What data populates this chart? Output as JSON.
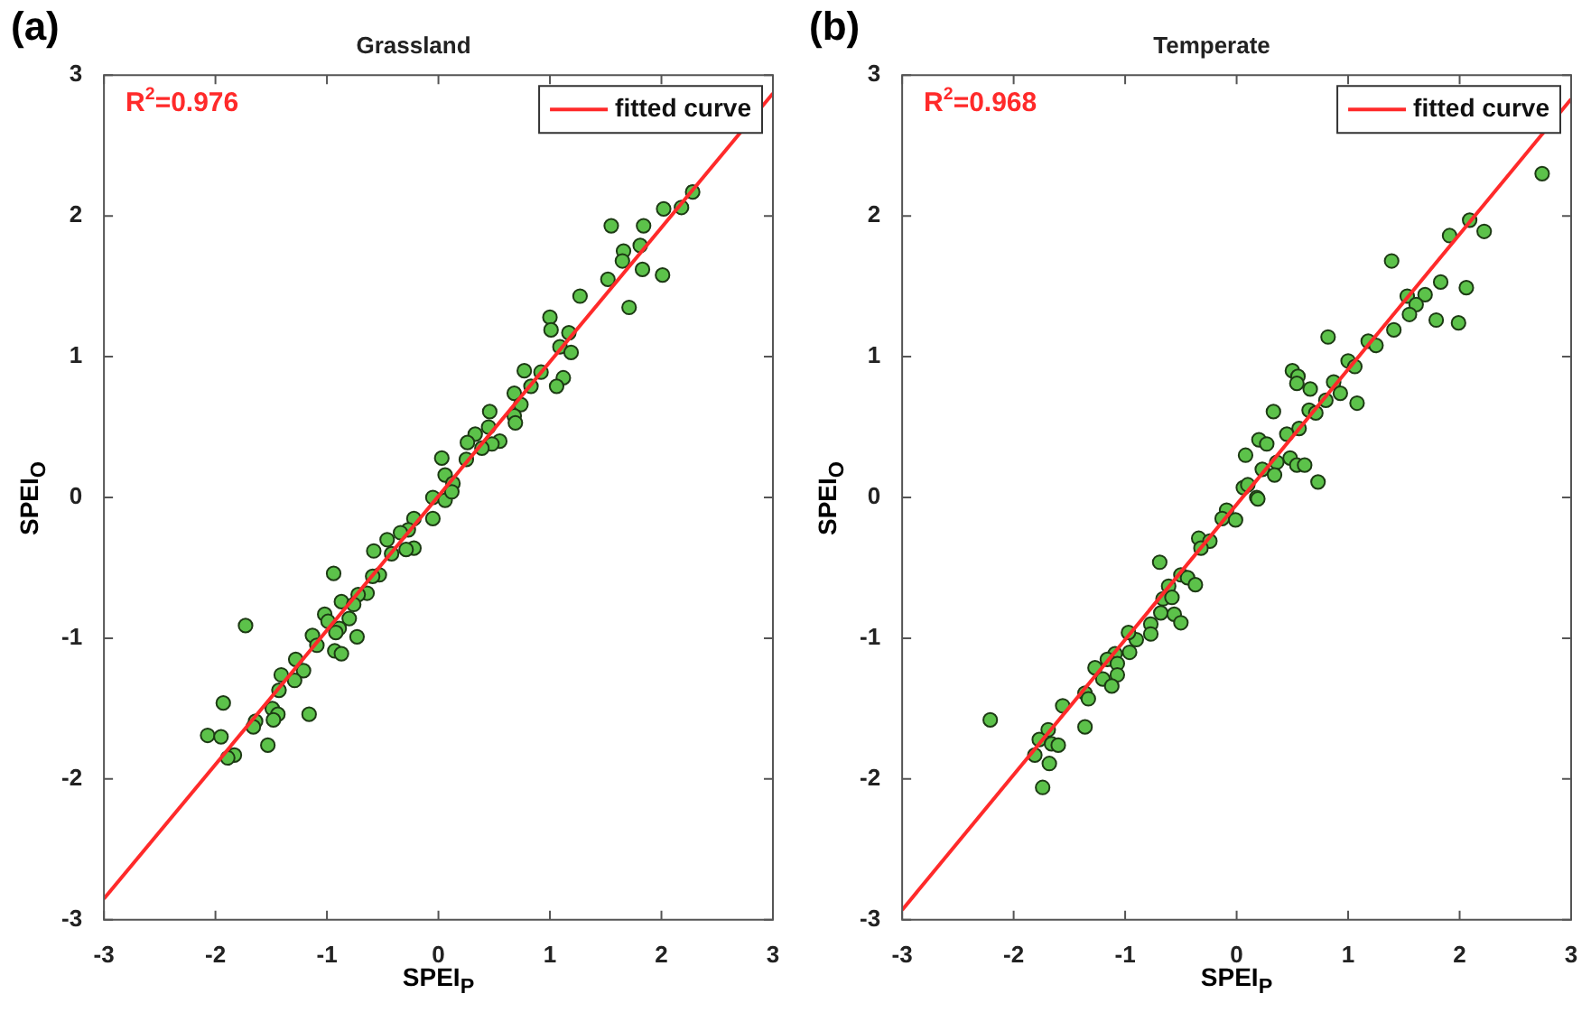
{
  "chart_data": [
    {
      "type": "scatter",
      "title": "Grassland",
      "xlabel": "SPEI$_{P}$",
      "ylabel": "SPEI$_{O}$",
      "annotations": [
        "(a)",
        "R$^{2}$=0.976"
      ],
      "xlim": [
        -3,
        3
      ],
      "ylim": [
        -3,
        3
      ],
      "xticks": [
        -3,
        -2,
        -1,
        0,
        1,
        2,
        3
      ],
      "yticks": [
        -3,
        -2,
        -1,
        0,
        1,
        2,
        3
      ],
      "legend": "top right",
      "marker": "circle",
      "grid": false,
      "series": [
        {
          "color": "#5cc24a",
          "x": [
            2.28,
            2.18,
            2.02,
            1.55,
            1.84,
            1.81,
            1.66,
            1.65,
            1.83,
            1.52,
            2.01,
            1.71,
            1.27,
            1.0,
            1.01,
            1.17,
            1.09,
            1.19,
            1.12,
            1.06,
            0.92,
            0.77,
            0.83,
            0.68,
            0.74,
            0.68,
            0.69,
            0.46,
            0.45,
            0.33,
            0.26,
            0.55,
            0.48,
            0.39,
            0.03,
            0.25,
            0.06,
            0.13,
            -0.05,
            0.06,
            0.12,
            -0.05,
            -0.22,
            -0.27,
            -0.34,
            -0.22,
            -0.29,
            -0.46,
            -0.58,
            -0.42,
            -0.94,
            -0.53,
            -0.59,
            -0.64,
            -0.72,
            -0.87,
            -0.76,
            -1.02,
            -0.8,
            -0.99,
            -0.89,
            -1.13,
            -0.73,
            -0.92,
            -1.09,
            -0.93,
            -0.87,
            -1.73,
            -1.28,
            -1.21,
            -1.41,
            -1.29,
            -1.43,
            -1.93,
            -1.49,
            -1.16,
            -1.44,
            -1.48,
            -1.64,
            -1.66,
            -2.07,
            -1.95,
            -1.53,
            -1.83,
            -1.89
          ],
          "values": [
            2.17,
            2.06,
            2.05,
            1.93,
            1.93,
            1.79,
            1.75,
            1.68,
            1.62,
            1.55,
            1.58,
            1.35,
            1.43,
            1.28,
            1.19,
            1.17,
            1.07,
            1.03,
            0.85,
            0.79,
            0.89,
            0.9,
            0.79,
            0.74,
            0.66,
            0.58,
            0.53,
            0.61,
            0.5,
            0.45,
            0.39,
            0.4,
            0.38,
            0.35,
            0.28,
            0.27,
            0.16,
            0.1,
            0.0,
            -0.02,
            0.04,
            -0.15,
            -0.15,
            -0.23,
            -0.25,
            -0.36,
            -0.37,
            -0.3,
            -0.38,
            -0.4,
            -0.54,
            -0.55,
            -0.56,
            -0.68,
            -0.69,
            -0.74,
            -0.76,
            -0.83,
            -0.86,
            -0.88,
            -0.93,
            -0.98,
            -0.99,
            -0.96,
            -1.05,
            -1.09,
            -1.11,
            -0.91,
            -1.15,
            -1.23,
            -1.26,
            -1.3,
            -1.37,
            -1.46,
            -1.5,
            -1.54,
            -1.54,
            -1.58,
            -1.59,
            -1.63,
            -1.69,
            -1.7,
            -1.76,
            -1.83,
            -1.85
          ]
        },
        {
          "type": "line",
          "name": "fitted curve",
          "color": "#ff2a2a",
          "marker": "none",
          "x": [
            -3,
            3
          ],
          "values": [
            -2.85,
            2.87
          ]
        }
      ]
    },
    {
      "type": "scatter",
      "title": "Temperate",
      "xlabel": "SPEI$_{P}$",
      "ylabel": "SPEI$_{O}$",
      "annotations": [
        "(b)",
        "R$^{2}$=0.968"
      ],
      "xlim": [
        -3,
        3
      ],
      "ylim": [
        -3,
        3
      ],
      "xticks": [
        -3,
        -2,
        -1,
        0,
        1,
        2,
        3
      ],
      "yticks": [
        -3,
        -2,
        -1,
        0,
        1,
        2,
        3
      ],
      "legend": "top right",
      "marker": "circle",
      "grid": false,
      "series": [
        {
          "color": "#5cc24a",
          "x": [
            2.74,
            2.09,
            2.22,
            1.91,
            1.39,
            1.83,
            2.06,
            1.69,
            1.53,
            1.61,
            1.55,
            1.79,
            1.99,
            1.41,
            1.18,
            1.25,
            0.82,
            1.0,
            1.06,
            0.5,
            0.55,
            0.54,
            0.87,
            0.66,
            0.93,
            0.8,
            1.08,
            0.33,
            0.65,
            0.71,
            0.56,
            0.45,
            0.2,
            0.27,
            0.08,
            0.48,
            0.54,
            0.61,
            0.36,
            0.23,
            0.34,
            0.73,
            0.06,
            0.1,
            0.18,
            -0.09,
            0.19,
            -0.01,
            -0.13,
            -0.34,
            -0.24,
            -0.32,
            -0.69,
            -0.5,
            -0.44,
            -0.37,
            -0.61,
            -0.66,
            -0.58,
            -0.68,
            -0.56,
            -0.5,
            -0.77,
            -0.77,
            -0.9,
            -0.97,
            -0.96,
            -1.09,
            -1.16,
            -1.07,
            -1.27,
            -1.2,
            -1.07,
            -1.12,
            -1.36,
            -1.33,
            -1.56,
            -2.21,
            -1.36,
            -1.69,
            -1.77,
            -1.66,
            -1.6,
            -1.81,
            -1.68,
            -1.74
          ],
          "values": [
            2.3,
            1.97,
            1.89,
            1.86,
            1.68,
            1.53,
            1.49,
            1.44,
            1.43,
            1.37,
            1.3,
            1.26,
            1.24,
            1.19,
            1.11,
            1.08,
            1.14,
            0.97,
            0.93,
            0.9,
            0.86,
            0.81,
            0.82,
            0.77,
            0.74,
            0.69,
            0.67,
            0.61,
            0.62,
            0.6,
            0.49,
            0.45,
            0.41,
            0.38,
            0.3,
            0.28,
            0.23,
            0.23,
            0.25,
            0.2,
            0.16,
            0.11,
            0.07,
            0.09,
            0.0,
            -0.09,
            -0.01,
            -0.16,
            -0.15,
            -0.29,
            -0.31,
            -0.36,
            -0.46,
            -0.55,
            -0.57,
            -0.62,
            -0.63,
            -0.72,
            -0.71,
            -0.82,
            -0.83,
            -0.89,
            -0.9,
            -0.97,
            -1.01,
            -0.96,
            -1.1,
            -1.11,
            -1.15,
            -1.18,
            -1.21,
            -1.29,
            -1.26,
            -1.34,
            -1.39,
            -1.43,
            -1.48,
            -1.58,
            -1.63,
            -1.65,
            -1.72,
            -1.75,
            -1.76,
            -1.83,
            -1.89,
            -2.06
          ]
        },
        {
          "type": "line",
          "name": "fitted curve",
          "color": "#ff2a2a",
          "marker": "none",
          "x": [
            -3,
            3
          ],
          "values": [
            -2.93,
            2.83
          ]
        }
      ]
    }
  ]
}
